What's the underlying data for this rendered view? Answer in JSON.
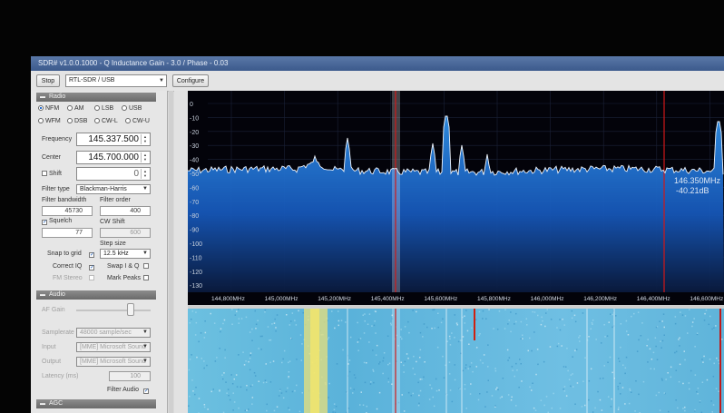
{
  "window": {
    "title": "SDR# v1.0.0.1000 - Q Inductance Gain - 3.0 / Phase - 0.03"
  },
  "toolbar": {
    "start_stop_label": "Stop",
    "device": "RTL-SDR / USB",
    "configure_label": "Configure"
  },
  "radio": {
    "section_label": "Radio",
    "modes": [
      {
        "label": "NFM",
        "selected": true
      },
      {
        "label": "AM",
        "selected": false
      },
      {
        "label": "LSB",
        "selected": false
      },
      {
        "label": "USB",
        "selected": false
      },
      {
        "label": "WFM",
        "selected": false
      },
      {
        "label": "DSB",
        "selected": false
      },
      {
        "label": "CW-L",
        "selected": false
      },
      {
        "label": "CW-U",
        "selected": false
      }
    ],
    "frequency_label": "Frequency",
    "frequency_value": "145.337.500",
    "center_label": "Center",
    "center_value": "145.700.000",
    "shift_label": "Shift",
    "shift_value": "0",
    "filter_type_label": "Filter type",
    "filter_type_value": "Blackman-Harris",
    "filter_bandwidth_label": "Filter bandwidth",
    "filter_bandwidth_value": "45730",
    "filter_order_label": "Filter order",
    "filter_order_value": "400",
    "squelch_label": "Squelch",
    "squelch_value": "77",
    "cw_shift_label": "CW Shift",
    "cw_shift_value": "600",
    "step_size_label": "Step size",
    "step_size_value": "12.5 kHz",
    "snap_to_grid_label": "Snap to grid",
    "correct_iq_label": "Correct IQ",
    "swap_iq_label": "Swap I & Q",
    "fm_stereo_label": "FM Stereo",
    "mark_peaks_label": "Mark Peaks"
  },
  "audio": {
    "section_label": "Audio",
    "af_gain_label": "AF Gain",
    "samplerate_label": "Samplerate",
    "samplerate_value": "48000 sample/sec",
    "input_label": "Input",
    "input_value": "[MME] Microsoft Sound",
    "output_label": "Output",
    "output_value": "[MME] Microsoft Sound",
    "latency_label": "Latency (ms)",
    "latency_value": "100",
    "filter_audio_label": "Filter Audio"
  },
  "agc": {
    "section_label": "AGC"
  },
  "spectrum": {
    "db_ticks": [
      "0",
      "-10",
      "-20",
      "-30",
      "-40",
      "-50",
      "-60",
      "-70",
      "-80",
      "-90",
      "-100",
      "-110",
      "-120",
      "-130"
    ],
    "freq_ticks": [
      "144,800MHz",
      "145,000MHz",
      "145,200MHz",
      "145,400MHz",
      "145,600MHz",
      "145,800MHz",
      "146,000MHz",
      "146,200MHz",
      "146,400MHz",
      "146,600MHz"
    ],
    "cursor_freq": "146.350MHz",
    "cursor_level": "-40.21dB",
    "colors": {
      "trace": "#e8eef8",
      "fill": "#1c6fcf",
      "marker": "#c81818",
      "waterfall": "#5fb0d6"
    }
  }
}
